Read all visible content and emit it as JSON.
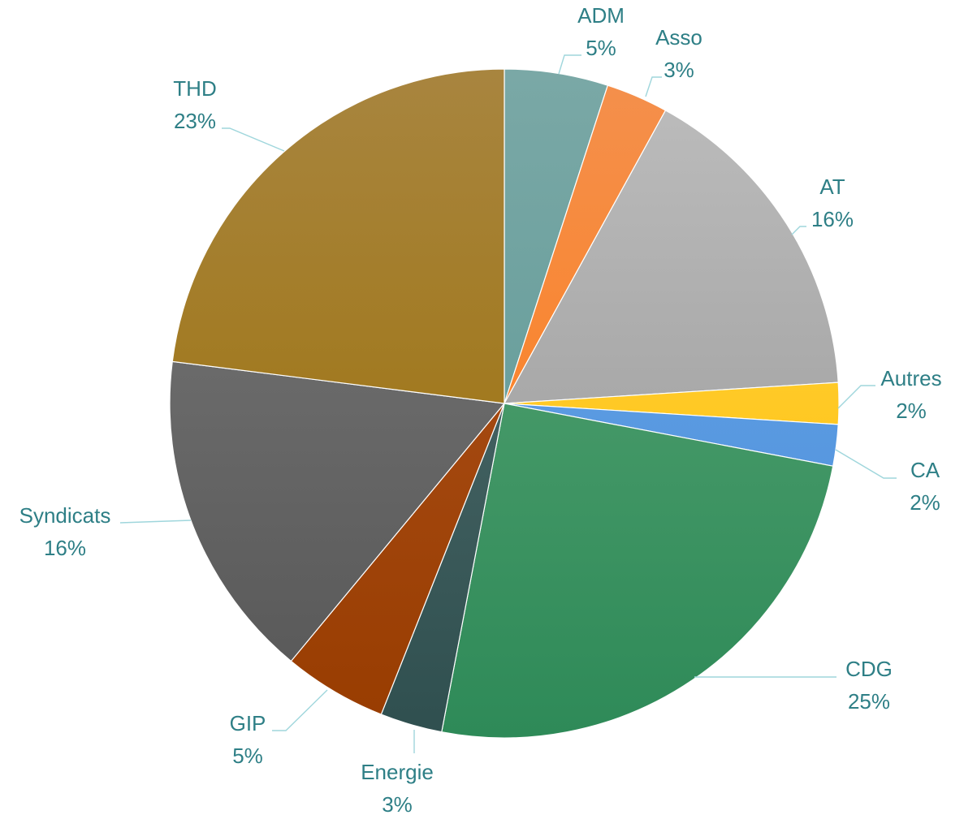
{
  "chart_data": {
    "type": "pie",
    "title": "",
    "show_legend": false,
    "label_style": "category name and percentage with leader lines",
    "label_color": "#2e7f86",
    "slices": [
      {
        "label": "ADM",
        "value": 5,
        "percent_label": "5%",
        "color_top": "#7aa8a6",
        "color_bottom": "#5a9794"
      },
      {
        "label": "Asso",
        "value": 3,
        "percent_label": "3%",
        "color_top": "#f4904d",
        "color_bottom": "#ff7a10"
      },
      {
        "label": "AT",
        "value": 16,
        "percent_label": "16%",
        "color_top": "#bdbdbd",
        "color_bottom": "#949494"
      },
      {
        "label": "Autres",
        "value": 2,
        "percent_label": "2%",
        "color_top": "#ffd24a",
        "color_bottom": "#ffc000"
      },
      {
        "label": "CA",
        "value": 2,
        "percent_label": "2%",
        "color_top": "#6aa5e6",
        "color_bottom": "#4a8fdc"
      },
      {
        "label": "CDG",
        "value": 25,
        "percent_label": "25%",
        "color_top": "#5aa676",
        "color_bottom": "#2e8a58"
      },
      {
        "label": "Energie",
        "value": 3,
        "percent_label": "3%",
        "color_top": "#567272",
        "color_bottom": "#2f4f4f"
      },
      {
        "label": "GIP",
        "value": 5,
        "percent_label": "5%",
        "color_top": "#b05520",
        "color_bottom": "#983c00"
      },
      {
        "label": "Syndicats",
        "value": 16,
        "percent_label": "16%",
        "color_top": "#7a7a7a",
        "color_bottom": "#565656"
      },
      {
        "label": "THD",
        "value": 23,
        "percent_label": "23%",
        "color_top": "#a8853f",
        "color_bottom": "#9b6e00"
      }
    ]
  }
}
